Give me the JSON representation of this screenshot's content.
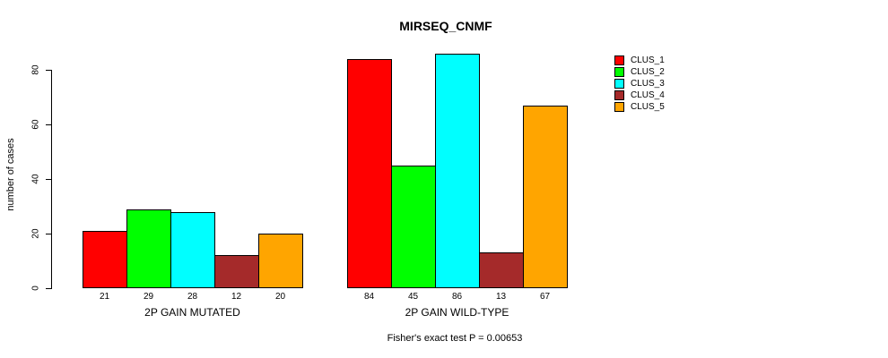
{
  "chart_data": {
    "type": "bar",
    "title": "MIRSEQ_CNMF",
    "ylabel": "number of cases",
    "xlabel": "",
    "ylim": [
      0,
      86
    ],
    "yticks": [
      0,
      20,
      40,
      60,
      80
    ],
    "grid": false,
    "legend_position": "right-outside",
    "bar_value_labels": true,
    "categories": [
      "2P GAIN MUTATED",
      "2P GAIN WILD-TYPE"
    ],
    "series": [
      {
        "name": "CLUS_1",
        "color": "#FF0000",
        "values": [
          21,
          84
        ]
      },
      {
        "name": "CLUS_2",
        "color": "#00FF00",
        "values": [
          29,
          45
        ]
      },
      {
        "name": "CLUS_3",
        "color": "#00FFFF",
        "values": [
          28,
          86
        ]
      },
      {
        "name": "CLUS_4",
        "color": "#A52A2A",
        "values": [
          12,
          13
        ]
      },
      {
        "name": "CLUS_5",
        "color": "#FFA500",
        "values": [
          20,
          67
        ]
      }
    ],
    "annotation": "Fisher's exact test P = 0.00653"
  }
}
